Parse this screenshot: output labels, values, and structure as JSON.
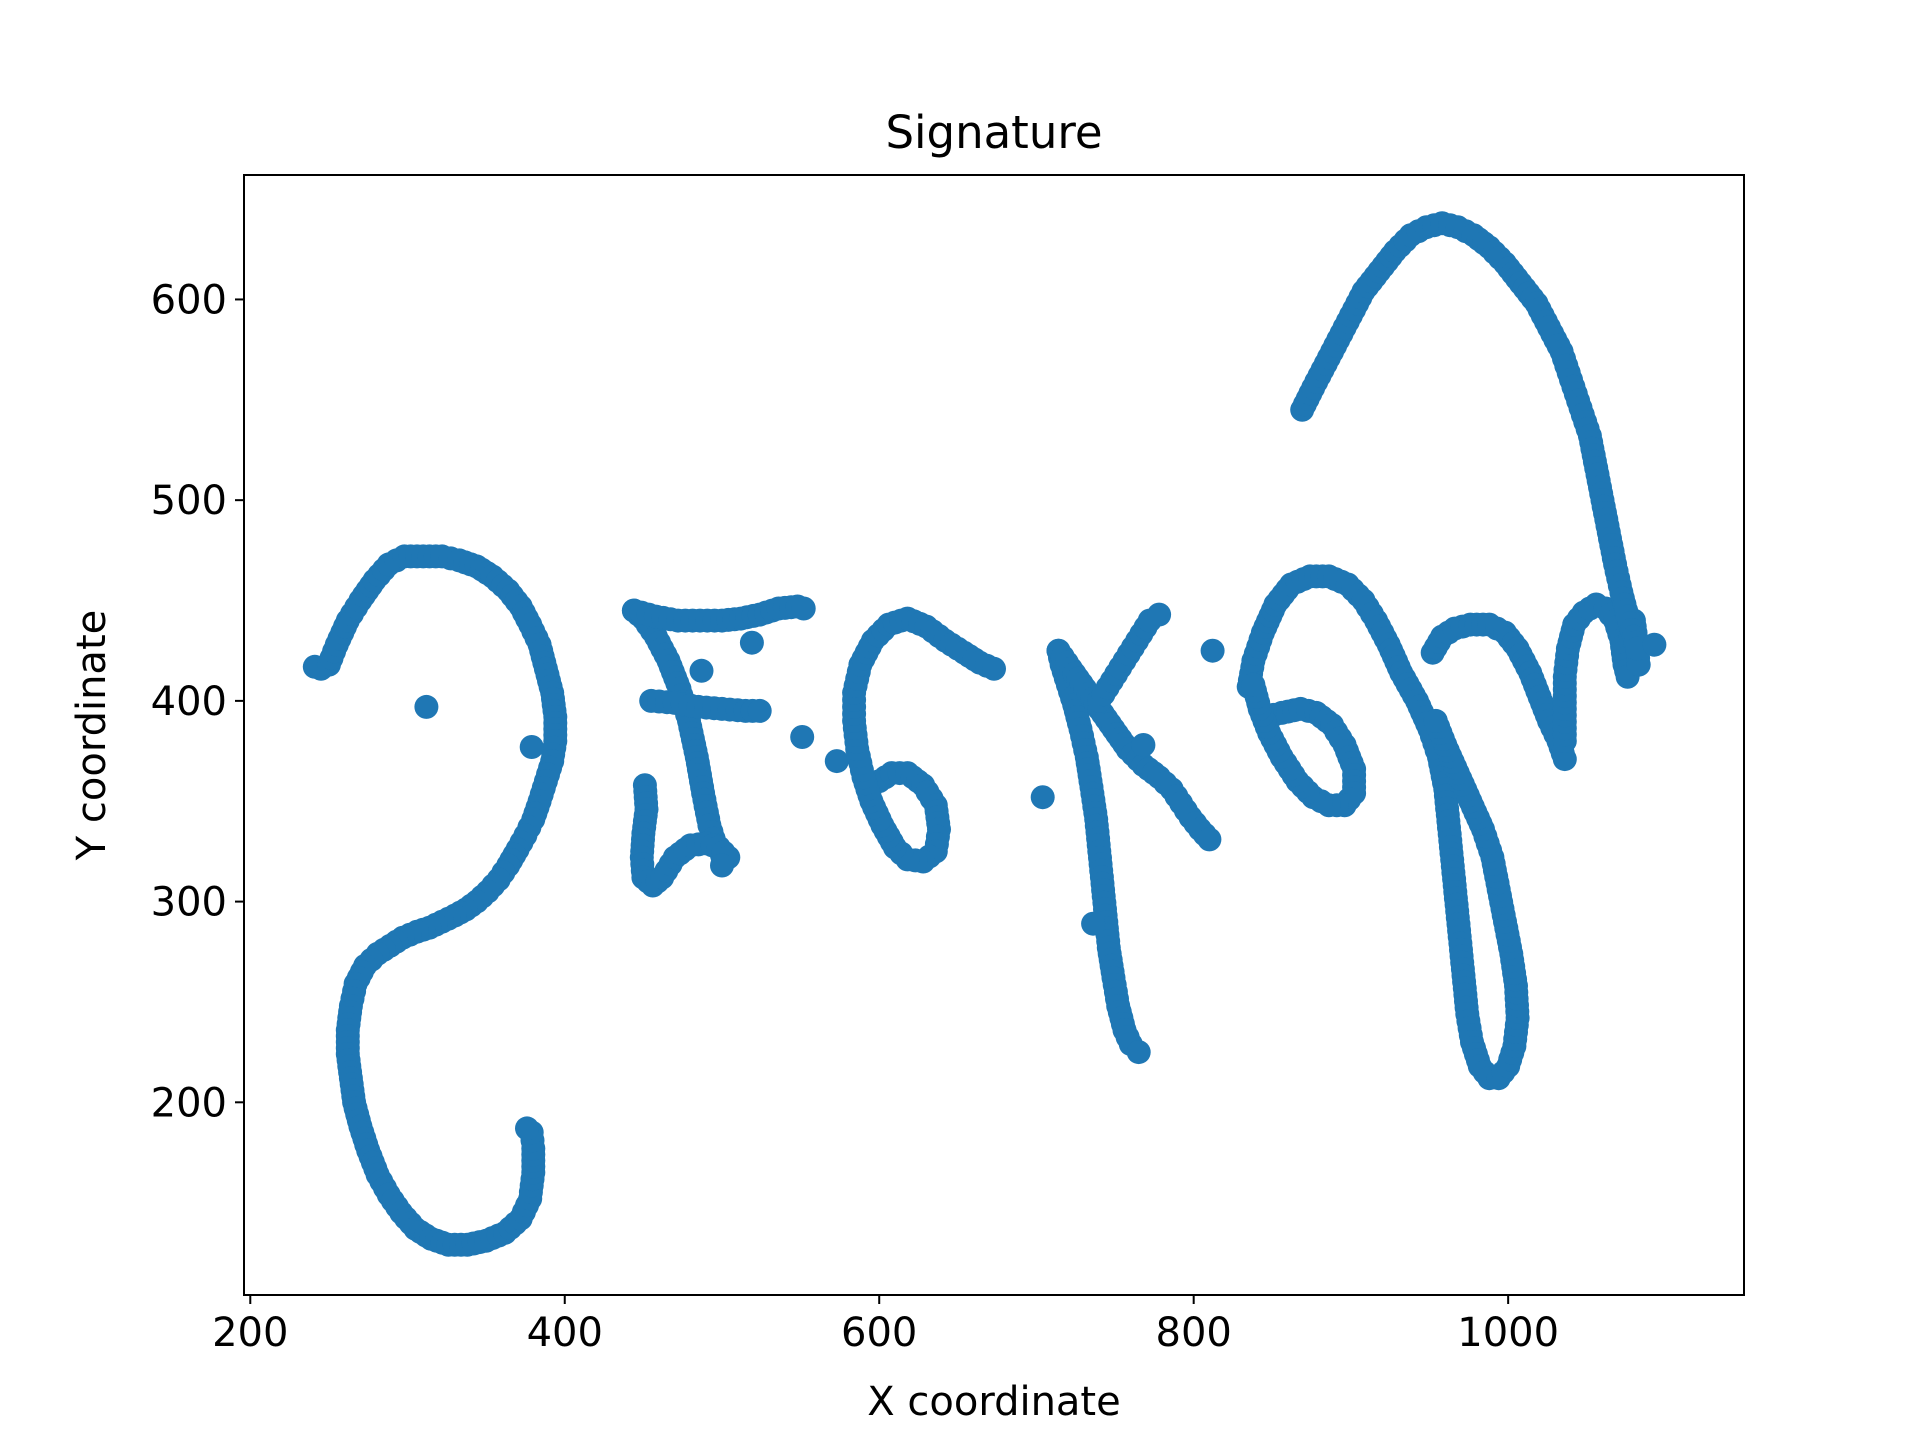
{
  "chart_data": {
    "type": "scatter",
    "title": "Signature",
    "xlabel": "X coordinate",
    "ylabel": "Y coordinate",
    "xlim": [
      196,
      1150
    ],
    "ylim": [
      104,
      662
    ],
    "xticks": [
      200,
      400,
      600,
      800,
      1000
    ],
    "yticks": [
      200,
      300,
      400,
      500,
      600
    ],
    "grid": false,
    "legend": "none",
    "marker_color": "#1f77b4",
    "strokes": [
      [
        [
          241,
          417
        ],
        [
          245,
          416
        ],
        [
          250,
          418
        ],
        [
          255,
          428
        ],
        [
          262,
          440
        ],
        [
          270,
          450
        ],
        [
          279,
          460
        ],
        [
          288,
          468
        ],
        [
          298,
          472
        ],
        [
          310,
          472
        ],
        [
          322,
          472
        ],
        [
          333,
          470
        ],
        [
          344,
          467
        ],
        [
          354,
          462
        ],
        [
          364,
          455
        ],
        [
          372,
          447
        ],
        [
          378,
          438
        ],
        [
          384,
          428
        ],
        [
          388,
          416
        ],
        [
          392,
          404
        ],
        [
          394,
          392
        ],
        [
          394,
          380
        ],
        [
          392,
          370
        ],
        [
          388,
          360
        ],
        [
          384,
          350
        ],
        [
          380,
          341
        ],
        [
          375,
          333
        ],
        [
          370,
          326
        ],
        [
          364,
          318
        ],
        [
          358,
          311
        ],
        [
          351,
          305
        ],
        [
          344,
          300
        ],
        [
          337,
          296
        ],
        [
          330,
          293
        ],
        [
          322,
          290
        ],
        [
          314,
          287
        ],
        [
          306,
          285
        ],
        [
          297,
          282
        ],
        [
          289,
          278
        ],
        [
          281,
          274
        ],
        [
          273,
          268
        ],
        [
          267,
          259
        ],
        [
          264,
          248
        ],
        [
          262,
          236
        ],
        [
          262,
          224
        ],
        [
          264,
          212
        ],
        [
          266,
          200
        ],
        [
          270,
          188
        ],
        [
          275,
          176
        ],
        [
          281,
          164
        ],
        [
          288,
          154
        ],
        [
          296,
          145
        ],
        [
          305,
          137
        ],
        [
          315,
          132
        ],
        [
          326,
          129
        ],
        [
          338,
          129
        ],
        [
          350,
          131
        ],
        [
          362,
          135
        ],
        [
          372,
          142
        ],
        [
          378,
          152
        ],
        [
          380,
          165
        ],
        [
          380,
          177
        ],
        [
          379,
          185
        ],
        [
          376,
          187
        ]
      ],
      [
        [
          312,
          397
        ]
      ],
      [
        [
          379,
          377
        ]
      ],
      [
        [
          444,
          445
        ],
        [
          450,
          441
        ],
        [
          458,
          432
        ],
        [
          466,
          420
        ],
        [
          473,
          406
        ],
        [
          479,
          390
        ],
        [
          484,
          372
        ],
        [
          488,
          354
        ],
        [
          492,
          338
        ],
        [
          496,
          328
        ],
        [
          500,
          323
        ]
      ],
      [
        [
          444,
          445
        ],
        [
          458,
          442
        ],
        [
          472,
          440
        ],
        [
          486,
          440
        ],
        [
          500,
          440
        ],
        [
          512,
          441
        ],
        [
          524,
          443
        ],
        [
          536,
          446
        ],
        [
          548,
          447
        ],
        [
          552,
          446
        ]
      ],
      [
        [
          455,
          400
        ],
        [
          470,
          399
        ],
        [
          485,
          397
        ],
        [
          500,
          396
        ],
        [
          515,
          395
        ],
        [
          524,
          395
        ]
      ],
      [
        [
          451,
          358
        ],
        [
          452,
          346
        ],
        [
          450,
          334
        ],
        [
          449,
          322
        ],
        [
          450,
          312
        ],
        [
          456,
          308
        ],
        [
          462,
          312
        ],
        [
          470,
          322
        ],
        [
          480,
          328
        ],
        [
          490,
          329
        ],
        [
          498,
          327
        ],
        [
          504,
          322
        ],
        [
          500,
          318
        ]
      ],
      [
        [
          487,
          415
        ]
      ],
      [
        [
          519,
          429
        ]
      ],
      [
        [
          551,
          382
        ]
      ],
      [
        [
          573,
          370
        ]
      ],
      [
        [
          600,
          360
        ],
        [
          608,
          364
        ],
        [
          618,
          364
        ],
        [
          628,
          358
        ],
        [
          636,
          348
        ],
        [
          638,
          336
        ],
        [
          636,
          325
        ],
        [
          628,
          320
        ],
        [
          618,
          321
        ],
        [
          610,
          327
        ],
        [
          602,
          338
        ],
        [
          595,
          350
        ],
        [
          590,
          362
        ],
        [
          586,
          376
        ],
        [
          584,
          390
        ],
        [
          584,
          404
        ],
        [
          588,
          418
        ],
        [
          596,
          430
        ],
        [
          606,
          438
        ],
        [
          618,
          441
        ],
        [
          630,
          437
        ],
        [
          642,
          430
        ],
        [
          654,
          424
        ],
        [
          664,
          419
        ],
        [
          673,
          416
        ]
      ],
      [
        [
          704,
          352
        ]
      ],
      [
        [
          714,
          425
        ],
        [
          716,
          418
        ],
        [
          720,
          408
        ],
        [
          724,
          398
        ],
        [
          728,
          386
        ],
        [
          732,
          372
        ],
        [
          735,
          357
        ],
        [
          738,
          341
        ],
        [
          740,
          325
        ],
        [
          742,
          309
        ],
        [
          744,
          293
        ],
        [
          746,
          277
        ],
        [
          749,
          262
        ],
        [
          752,
          248
        ],
        [
          756,
          236
        ],
        [
          760,
          229
        ],
        [
          765,
          225
        ]
      ],
      [
        [
          714,
          425
        ],
        [
          722,
          416
        ],
        [
          731,
          406
        ],
        [
          740,
          396
        ],
        [
          749,
          386
        ],
        [
          758,
          376
        ],
        [
          768,
          368
        ],
        [
          778,
          362
        ],
        [
          786,
          356
        ],
        [
          792,
          349
        ],
        [
          798,
          342
        ],
        [
          804,
          336
        ],
        [
          810,
          331
        ]
      ],
      [
        [
          736,
          289
        ]
      ],
      [
        [
          740,
          400
        ],
        [
          748,
          410
        ],
        [
          756,
          420
        ],
        [
          764,
          430
        ],
        [
          772,
          440
        ],
        [
          778,
          443
        ]
      ],
      [
        [
          768,
          378
        ]
      ],
      [
        [
          812,
          425
        ]
      ],
      [
        [
          835,
          407
        ],
        [
          838,
          420
        ],
        [
          844,
          434
        ],
        [
          852,
          448
        ],
        [
          862,
          458
        ],
        [
          874,
          462
        ],
        [
          886,
          462
        ],
        [
          898,
          458
        ],
        [
          908,
          450
        ],
        [
          916,
          440
        ],
        [
          924,
          428
        ],
        [
          932,
          414
        ],
        [
          942,
          400
        ],
        [
          950,
          386
        ],
        [
          956,
          372
        ],
        [
          960,
          356
        ],
        [
          962,
          340
        ],
        [
          964,
          324
        ],
        [
          966,
          308
        ],
        [
          968,
          292
        ],
        [
          970,
          276
        ],
        [
          972,
          260
        ],
        [
          974,
          244
        ],
        [
          977,
          230
        ],
        [
          982,
          218
        ],
        [
          988,
          212
        ],
        [
          994,
          212
        ],
        [
          1000,
          218
        ],
        [
          1004,
          228
        ],
        [
          1006,
          242
        ],
        [
          1005,
          258
        ],
        [
          1002,
          274
        ],
        [
          998,
          290
        ],
        [
          994,
          306
        ],
        [
          990,
          322
        ],
        [
          984,
          336
        ],
        [
          976,
          350
        ],
        [
          968,
          364
        ],
        [
          960,
          378
        ],
        [
          954,
          390
        ]
      ],
      [
        [
          846,
          392
        ],
        [
          856,
          394
        ],
        [
          868,
          396
        ],
        [
          878,
          394
        ],
        [
          888,
          388
        ],
        [
          896,
          378
        ],
        [
          902,
          366
        ],
        [
          902,
          354
        ],
        [
          896,
          348
        ],
        [
          886,
          348
        ],
        [
          876,
          352
        ],
        [
          866,
          360
        ],
        [
          856,
          372
        ],
        [
          848,
          384
        ],
        [
          842,
          396
        ],
        [
          838,
          408
        ]
      ],
      [
        [
          952,
          424
        ],
        [
          958,
          432
        ],
        [
          966,
          436
        ],
        [
          976,
          438
        ],
        [
          988,
          438
        ],
        [
          998,
          434
        ],
        [
          1006,
          426
        ],
        [
          1014,
          414
        ],
        [
          1020,
          402
        ],
        [
          1026,
          390
        ],
        [
          1032,
          380
        ],
        [
          1036,
          371
        ]
      ],
      [
        [
          1036,
          380
        ],
        [
          1036,
          396
        ],
        [
          1036,
          412
        ],
        [
          1038,
          426
        ],
        [
          1042,
          438
        ],
        [
          1048,
          444
        ],
        [
          1056,
          448
        ],
        [
          1062,
          446
        ],
        [
          1068,
          440
        ],
        [
          1072,
          430
        ],
        [
          1074,
          418
        ],
        [
          1076,
          412
        ]
      ],
      [
        [
          1078,
          432
        ],
        [
          1080,
          440
        ],
        [
          1082,
          428
        ],
        [
          1083,
          418
        ]
      ],
      [
        [
          869,
          545
        ],
        [
          876,
          556
        ],
        [
          884,
          568
        ],
        [
          892,
          580
        ],
        [
          900,
          592
        ],
        [
          908,
          604
        ],
        [
          918,
          614
        ],
        [
          928,
          624
        ],
        [
          938,
          632
        ],
        [
          948,
          636
        ],
        [
          958,
          638
        ],
        [
          968,
          636
        ],
        [
          978,
          632
        ],
        [
          988,
          626
        ],
        [
          998,
          618
        ],
        [
          1008,
          608
        ],
        [
          1018,
          598
        ],
        [
          1026,
          586
        ],
        [
          1034,
          574
        ],
        [
          1040,
          560
        ],
        [
          1046,
          546
        ],
        [
          1052,
          532
        ],
        [
          1056,
          516
        ],
        [
          1060,
          500
        ],
        [
          1064,
          484
        ],
        [
          1068,
          468
        ],
        [
          1072,
          454
        ],
        [
          1076,
          442
        ],
        [
          1080,
          432
        ],
        [
          1082,
          426
        ]
      ],
      [
        [
          1093,
          428
        ]
      ]
    ]
  }
}
